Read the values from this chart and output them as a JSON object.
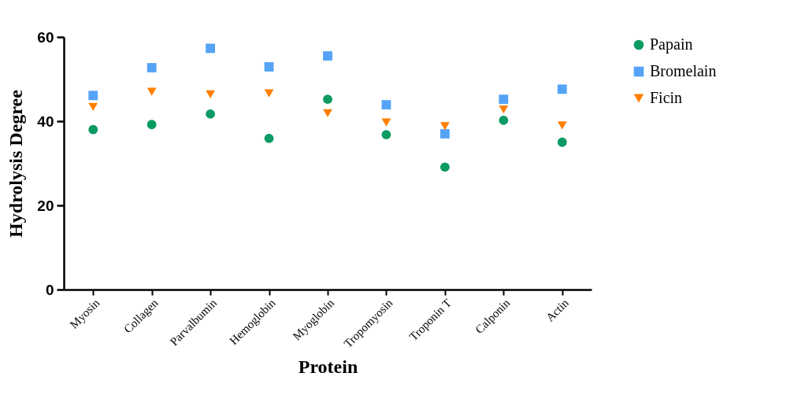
{
  "chart_data": {
    "type": "scatter",
    "xlabel": "Protein",
    "ylabel": "Hydrolysis Degree",
    "categories": [
      "Myosin",
      "Collagen",
      "Parvalbumin",
      "Hemoglobin",
      "Myoglobin",
      "Tropomyosin",
      "Troponin T",
      "Calponin",
      "Actin"
    ],
    "series": [
      {
        "name": "Papain",
        "color": "#0a9a62",
        "marker": "circle",
        "values": [
          38.0,
          39.2,
          41.7,
          35.9,
          45.2,
          36.8,
          29.1,
          40.2,
          35.0
        ]
      },
      {
        "name": "Bromelain",
        "color": "#55a3f7",
        "marker": "square",
        "values": [
          46.1,
          52.7,
          57.3,
          52.9,
          55.5,
          43.9,
          37.0,
          45.2,
          47.6
        ]
      },
      {
        "name": "Ficin",
        "color": "#ff8000",
        "marker": "triangle",
        "values": [
          43.4,
          47.0,
          46.4,
          46.6,
          41.9,
          39.7,
          38.8,
          42.8,
          39.0
        ]
      }
    ],
    "ylim": [
      0,
      60
    ],
    "yticks": [
      0,
      20,
      40,
      60
    ],
    "grid": false,
    "legend": "top right"
  }
}
